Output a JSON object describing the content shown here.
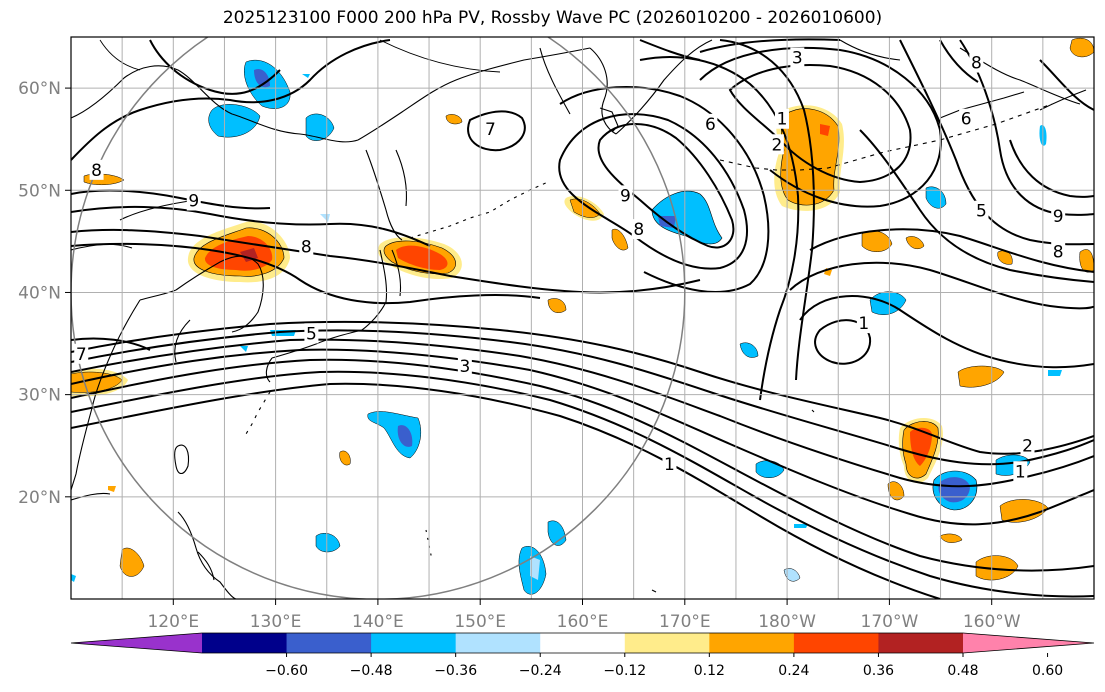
{
  "title": "2025123100 F000 200 hPa PV, Rossby Wave PC (2026010200 - 2026010600)",
  "map": {
    "projection": "PlateCarree",
    "lon_range": [
      110,
      210
    ],
    "lat_range": [
      10,
      65
    ],
    "lon_ticks": [
      {
        "value": 120,
        "label": "120°E"
      },
      {
        "value": 130,
        "label": "130°E"
      },
      {
        "value": 140,
        "label": "140°E"
      },
      {
        "value": 150,
        "label": "150°E"
      },
      {
        "value": 160,
        "label": "160°E"
      },
      {
        "value": 170,
        "label": "170°E"
      },
      {
        "value": 180,
        "label": "180°W"
      },
      {
        "value": 190,
        "label": "170°W"
      },
      {
        "value": 200,
        "label": "160°W"
      }
    ],
    "lat_ticks": [
      {
        "value": 20,
        "label": "20°N"
      },
      {
        "value": 30,
        "label": "30°N"
      },
      {
        "value": 40,
        "label": "40°N"
      },
      {
        "value": 50,
        "label": "50°N"
      },
      {
        "value": 60,
        "label": "60°N"
      }
    ],
    "grid_lon": [
      110,
      115,
      120,
      125,
      130,
      135,
      140,
      145,
      150,
      155,
      160,
      165,
      170,
      175,
      180,
      185,
      190,
      195,
      200,
      205
    ],
    "grid_lat": [
      10,
      20,
      30,
      40,
      50,
      60
    ],
    "circle": {
      "center_lon": 140,
      "center_lat": 40,
      "radius_deg": 30,
      "color": "#808080"
    },
    "contour_labels": [
      {
        "text": "9",
        "lon": 122,
        "lat": 49
      },
      {
        "text": "8",
        "lon": 133,
        "lat": 44.5
      },
      {
        "text": "8",
        "lon": 112.5,
        "lat": 52
      },
      {
        "text": "7",
        "lon": 111,
        "lat": 34
      },
      {
        "text": "5",
        "lon": 133.5,
        "lat": 36
      },
      {
        "text": "3",
        "lon": 148.5,
        "lat": 32.8
      },
      {
        "text": "1",
        "lon": 168.5,
        "lat": 23.2
      },
      {
        "text": "9",
        "lon": 164.2,
        "lat": 49.5
      },
      {
        "text": "8",
        "lon": 165.5,
        "lat": 46.2
      },
      {
        "text": "7",
        "lon": 151,
        "lat": 56
      },
      {
        "text": "6",
        "lon": 172.5,
        "lat": 56.5
      },
      {
        "text": "3",
        "lon": 181,
        "lat": 63
      },
      {
        "text": "1",
        "lon": 179.5,
        "lat": 57
      },
      {
        "text": "2",
        "lon": 179,
        "lat": 54.5
      },
      {
        "text": "1",
        "lon": 187.5,
        "lat": 37
      },
      {
        "text": "1",
        "lon": 202.8,
        "lat": 22.5
      },
      {
        "text": "2",
        "lon": 203.5,
        "lat": 25
      },
      {
        "text": "5",
        "lon": 199,
        "lat": 48
      },
      {
        "text": "6",
        "lon": 197.5,
        "lat": 57
      },
      {
        "text": "8",
        "lon": 198.5,
        "lat": 62.5
      },
      {
        "text": "9",
        "lon": 206.5,
        "lat": 47.5
      },
      {
        "text": "8",
        "lon": 206.5,
        "lat": 44
      }
    ]
  },
  "colorbar": {
    "ticks": [
      "−0.60",
      "−0.48",
      "−0.36",
      "−0.24",
      "−0.12",
      "0.12",
      "0.24",
      "0.36",
      "0.48",
      "0.60"
    ],
    "colors": [
      "#9932cc",
      "#00008b",
      "#3a5fcd",
      "#00bfff",
      "#b0e2ff",
      "#ffffff",
      "#ffec8b",
      "#ffa500",
      "#ff4500",
      "#b22222",
      "#ff82ab"
    ]
  }
}
